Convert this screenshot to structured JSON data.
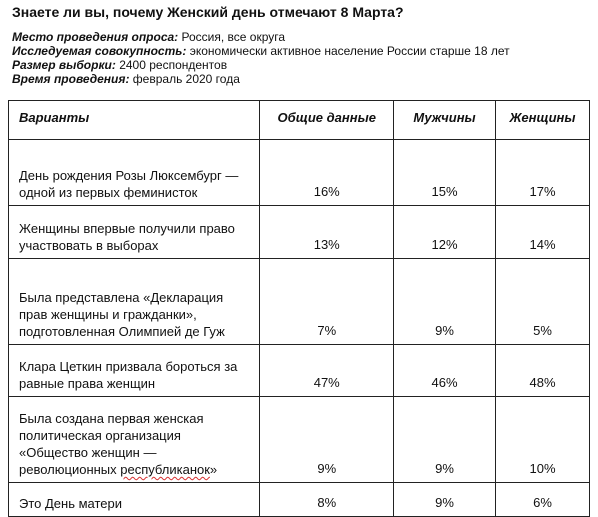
{
  "title": "Знаете ли вы, почему Женский день отмечают 8 Марта?",
  "meta": [
    {
      "label": "Место проведения опроса:",
      "value": "Россия, все округа"
    },
    {
      "label": "Исследуемая совокупность:",
      "value": "экономически активное население России старше 18 лет"
    },
    {
      "label": "Размер выборки:",
      "value": "2400 респондентов"
    },
    {
      "label": "Время проведения:",
      "value": "февраль 2020 года"
    }
  ],
  "table": {
    "headers": [
      "Варианты",
      "Общие данные",
      "Мужчины",
      "Женщины"
    ],
    "rows": [
      {
        "variant": "День рождения Розы Люксембург — одной из первых феминисток",
        "total": "16%",
        "men": "15%",
        "women": "17%"
      },
      {
        "variant": "Женщины впервые получили право участвовать в выборах",
        "total": "13%",
        "men": "12%",
        "women": "14%"
      },
      {
        "variant": "Была представлена «Декларация прав женщины и гражданки», подготовленная Олимпией де Гуж",
        "total": "7%",
        "men": "9%",
        "women": "5%"
      },
      {
        "variant": "Клара Цеткин призвала бороться за равные права женщин",
        "total": "47%",
        "men": "46%",
        "women": "48%"
      },
      {
        "variant_main": "Была создана первая женская политическая организация «Общество женщин — революционных ",
        "variant_flagged": "республиканок",
        "variant_tail": "»",
        "total": "9%",
        "men": "9%",
        "women": "10%"
      },
      {
        "variant": "Это День матери",
        "total": "8%",
        "men": "9%",
        "women": "6%"
      }
    ]
  }
}
